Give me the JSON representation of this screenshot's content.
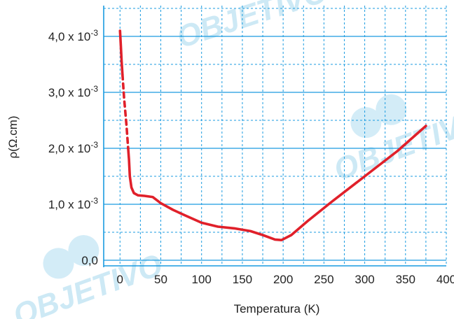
{
  "chart_data": {
    "type": "line",
    "title": "",
    "xlabel": "Temperatura (K)",
    "ylabel": "ρ(Ω.cm)",
    "xlim": [
      -20,
      400
    ],
    "ylim": [
      -0.1,
      4.55
    ],
    "y_unit_multiplier": "x 10-3",
    "x_ticks": [
      "0",
      "50",
      "100",
      "150",
      "200",
      "250",
      "300",
      "350",
      "400"
    ],
    "x_tick_values": [
      0,
      50,
      100,
      150,
      200,
      250,
      300,
      350,
      400
    ],
    "y_ticks": [
      {
        "value": 0,
        "mantissa": "0,0",
        "times": "",
        "exponent": ""
      },
      {
        "value": 1.0,
        "mantissa": "1,0",
        "times": " x 10",
        "exponent": "-3"
      },
      {
        "value": 2.0,
        "mantissa": "2,0",
        "times": " x 10",
        "exponent": "-3"
      },
      {
        "value": 3.0,
        "mantissa": "3,0",
        "times": " x 10",
        "exponent": "-3"
      },
      {
        "value": 4.0,
        "mantissa": "4,0",
        "times": " x 10",
        "exponent": "-3"
      }
    ],
    "grid": true,
    "grid_minor_y": [
      0.5,
      1.5,
      2.5,
      3.5,
      4.5
    ],
    "grid_minor_x": [
      25,
      75,
      125,
      175,
      225,
      275,
      325,
      375
    ],
    "series": [
      {
        "color": "#e0202a",
        "segments": [
          {
            "style": "solid",
            "points": [
              [
                0,
                4.1
              ],
              [
                1,
                3.85
              ],
              [
                2,
                3.55
              ],
              [
                3,
                3.32
              ]
            ]
          },
          {
            "style": "dashed",
            "points": [
              [
                3,
                3.32
              ],
              [
                5,
                2.9
              ],
              [
                8,
                2.4
              ],
              [
                10,
                2.0
              ]
            ]
          },
          {
            "style": "solid",
            "points": [
              [
                10,
                2.0
              ],
              [
                11,
                1.8
              ],
              [
                12,
                1.5
              ],
              [
                14,
                1.3
              ],
              [
                17,
                1.2
              ],
              [
                22,
                1.16
              ],
              [
                30,
                1.15
              ],
              [
                40,
                1.13
              ],
              [
                50,
                1.02
              ],
              [
                65,
                0.9
              ],
              [
                80,
                0.8
              ],
              [
                100,
                0.67
              ],
              [
                120,
                0.6
              ],
              [
                140,
                0.57
              ],
              [
                160,
                0.52
              ],
              [
                175,
                0.45
              ],
              [
                190,
                0.37
              ],
              [
                198,
                0.36
              ],
              [
                210,
                0.45
              ],
              [
                230,
                0.7
              ],
              [
                260,
                1.05
              ],
              [
                300,
                1.5
              ],
              [
                340,
                1.95
              ],
              [
                375,
                2.4
              ]
            ]
          }
        ]
      }
    ]
  },
  "watermark": {
    "text": "OBJETIVO"
  }
}
